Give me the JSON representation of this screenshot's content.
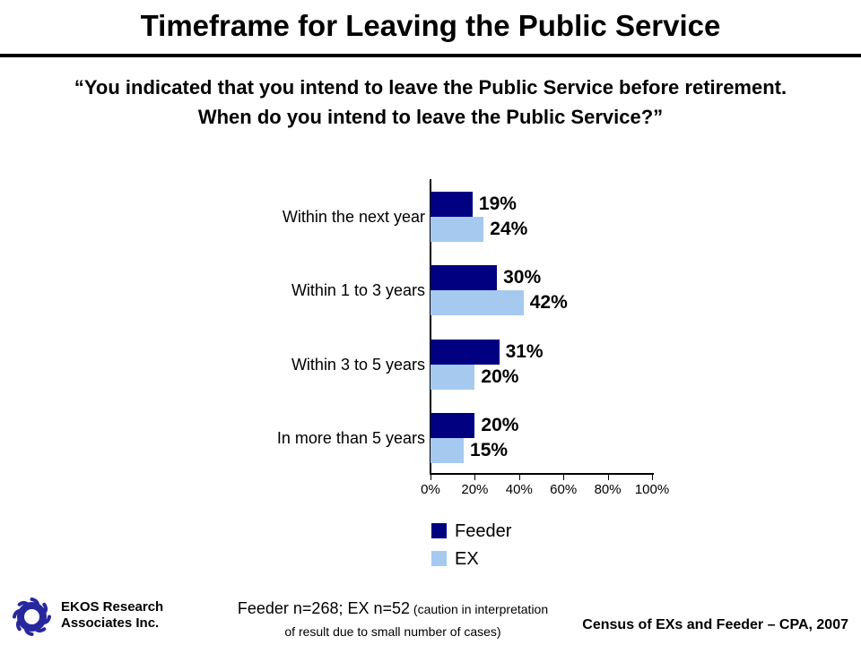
{
  "header": {
    "title": "Timeframe for Leaving the Public Service",
    "quote_line1": "“You indicated that you intend to leave the Public Service before retirement.",
    "quote_line2": "When do you intend to leave the Public Service?”"
  },
  "chart_data": {
    "type": "bar",
    "orientation": "horizontal",
    "categories": [
      "Within the next year",
      "Within 1 to 3 years",
      "Within 3 to 5 years",
      "In more than 5 years"
    ],
    "series": [
      {
        "name": "Feeder",
        "color": "#000080",
        "values": [
          19,
          30,
          31,
          20
        ]
      },
      {
        "name": "EX",
        "color": "#A6C9EF",
        "values": [
          24,
          42,
          20,
          15
        ]
      }
    ],
    "value_axis": {
      "min": 0,
      "max": 100,
      "tick_labels": [
        "0%",
        "20%",
        "40%",
        "60%",
        "80%",
        "100%"
      ]
    },
    "data_label_suffix": "%",
    "grid": "off",
    "legend_position": "below-plot-left"
  },
  "footer": {
    "org_line1": "EKOS Research",
    "org_line2": "Associates Inc.",
    "note_main": "Feeder n=268; EX n=52",
    "note_caution_line1": "(caution in interpretation",
    "note_caution_line2": "of result due to small number of cases)",
    "source": "Census of EXs and Feeder – CPA, 2007"
  },
  "colors": {
    "feeder": "#000080",
    "ex": "#A6C9EF",
    "axis": "#000000",
    "logo": "#28289E"
  }
}
